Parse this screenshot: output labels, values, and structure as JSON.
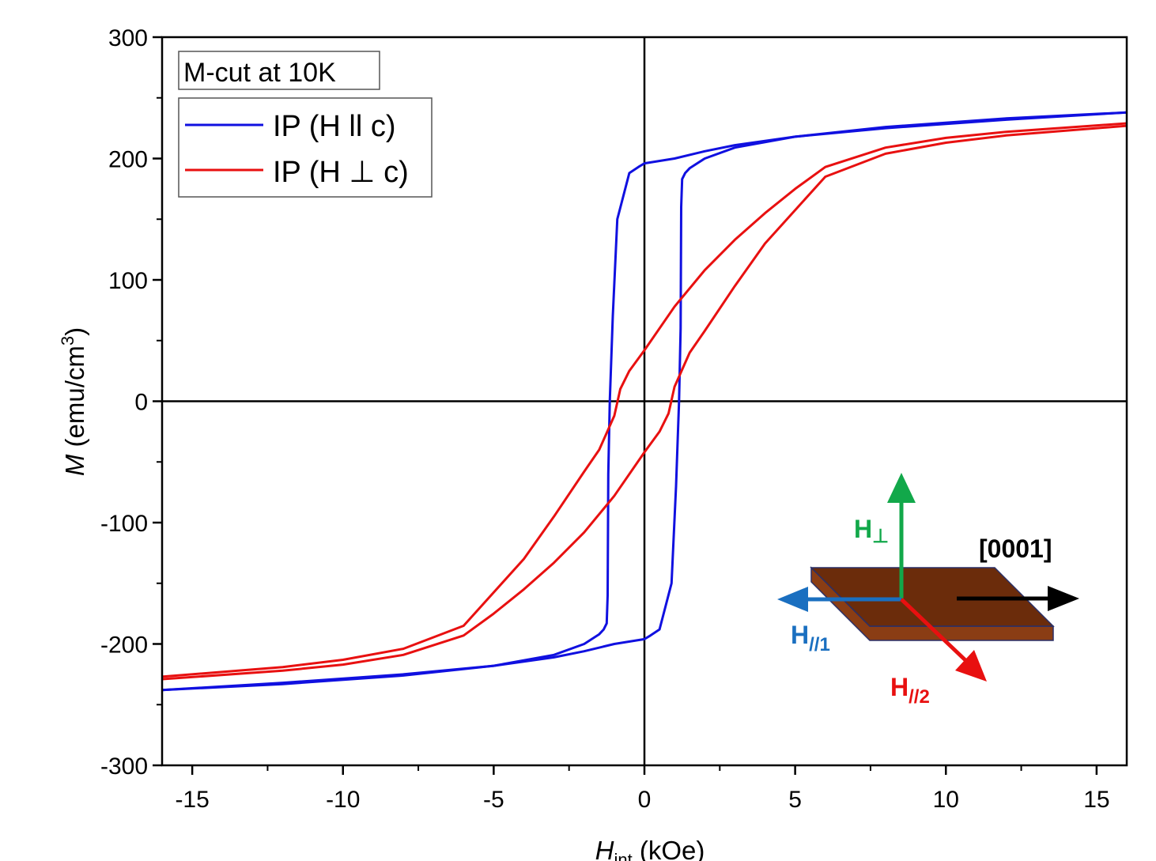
{
  "chart_data": {
    "type": "line",
    "title": "",
    "xlabel": {
      "main": "H",
      "sub": "int",
      "unit": " (kOe)"
    },
    "ylabel": {
      "main": "M",
      "unit": " (emu/cm",
      "sup": "3",
      "close": ")"
    },
    "xlim": [
      -16,
      16
    ],
    "ylim": [
      -300,
      300
    ],
    "xticks": [
      -15,
      -10,
      -5,
      0,
      5,
      10,
      15
    ],
    "yticks": [
      -300,
      -200,
      -100,
      0,
      100,
      200,
      300
    ],
    "xtick_labels": [
      "-15",
      "-10",
      "-5",
      "0",
      "5",
      "10",
      "15"
    ],
    "ytick_labels": [
      "-300",
      "-200",
      "-100",
      "0",
      "100",
      "200",
      "300"
    ],
    "zero_lines": true,
    "legend": {
      "placement": "top-left",
      "header": "M-cut at 10K",
      "entries": [
        "IP (H ll c)",
        "IP (H ⊥ c)"
      ]
    },
    "series": [
      {
        "name": "IP (H ll c)",
        "color": "#1010e0",
        "branches": [
          {
            "x": [
              16,
              12,
              8,
              5,
              3,
              2,
              1,
              0,
              -0.2,
              -0.5,
              -0.9,
              -1.05,
              -1.15,
              -1.2,
              -1.22,
              -1.25,
              -1.35,
              -1.5,
              -2,
              -3,
              -5,
              -8,
              -12,
              -16
            ],
            "y": [
              238,
              233,
              226,
              218,
              211,
              206,
              200,
              196,
              193,
              188,
              150,
              70,
              0,
              -60,
              -160,
              -183,
              -188,
              -192,
              -200,
              -209,
              -218,
              -225,
              -232,
              -238
            ]
          },
          {
            "x": [
              -16,
              -12,
              -8,
              -5,
              -3,
              -2,
              -1,
              0,
              0.2,
              0.5,
              0.9,
              1.05,
              1.15,
              1.2,
              1.22,
              1.25,
              1.35,
              1.5,
              2,
              3,
              5,
              8,
              12,
              16
            ],
            "y": [
              -238,
              -233,
              -226,
              -218,
              -211,
              -206,
              -200,
              -196,
              -193,
              -188,
              -150,
              -70,
              0,
              60,
              160,
              183,
              188,
              192,
              200,
              209,
              218,
              225,
              232,
              238
            ]
          }
        ]
      },
      {
        "name": "IP (H ⊥ c)",
        "color": "#e81010",
        "branches": [
          {
            "x": [
              16,
              12,
              10,
              8,
              6,
              5,
              4,
              3,
              2,
              1,
              0,
              -0.5,
              -0.8,
              -1,
              -1.5,
              -2,
              -3,
              -4,
              -6,
              -8,
              -10,
              -12,
              -16
            ],
            "y": [
              229,
              222,
              217,
              209,
              193,
              175,
              155,
              133,
              108,
              78,
              42,
              25,
              10,
              -12,
              -40,
              -58,
              -95,
              -130,
              -185,
              -204,
              -213,
              -219,
              -227
            ]
          },
          {
            "x": [
              -16,
              -12,
              -10,
              -8,
              -6,
              -5,
              -4,
              -3,
              -2,
              -1,
              0,
              0.5,
              0.8,
              1,
              1.5,
              2,
              3,
              4,
              6,
              8,
              10,
              12,
              16
            ],
            "y": [
              -229,
              -222,
              -217,
              -209,
              -193,
              -175,
              -155,
              -133,
              -108,
              -78,
              -42,
              -25,
              -10,
              12,
              40,
              58,
              95,
              130,
              185,
              204,
              213,
              219,
              227
            ]
          }
        ]
      }
    ],
    "inset": {
      "labels": {
        "perp_main": "H",
        "perp_sub": "⊥",
        "c_axis": "[0001]",
        "par1_main": "H",
        "par1_sub": "//1",
        "par2_main": "H",
        "par2_sub": "//2"
      },
      "colors": {
        "perp": "#12a84a",
        "par1": "#1a6fc0",
        "par2": "#e81010",
        "c_axis": "#000000",
        "plate_top": "#6b2c0b",
        "plate_side": "#8a3d14",
        "plate_edge": "#2a2f66"
      }
    }
  }
}
